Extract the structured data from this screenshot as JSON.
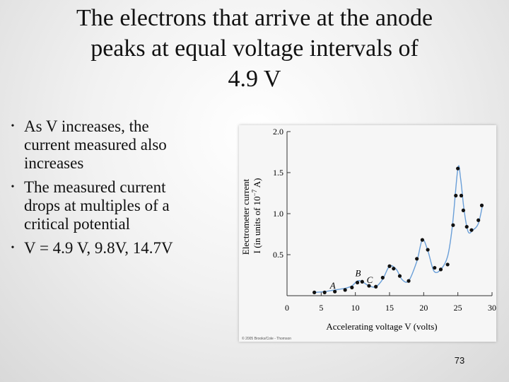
{
  "slide": {
    "title_lines": [
      "The electrons that arrive at the anode",
      "peaks at equal voltage intervals of",
      "4.9 V"
    ],
    "bullets": [
      {
        "lines": [
          "As V increases, the",
          "current measured also",
          "increases"
        ]
      },
      {
        "lines": [
          "The measured current",
          "drops at multiples of a",
          "critical potential"
        ]
      },
      {
        "lines": [
          "V = 4.9 V, 9.8V, 14.7V"
        ]
      }
    ],
    "bullet_glyph": "•",
    "page_number": "73"
  },
  "chart_data": {
    "type": "line",
    "xlabel": "Accelerating voltage V (volts)",
    "ylabel_line1": "Electrometer current",
    "ylabel_line2": "I (in units of 10",
    "ylabel_exp": "−7",
    "ylabel_end": " A)",
    "xlim": [
      0,
      30
    ],
    "ylim": [
      0,
      2.0
    ],
    "x_ticks": [
      0,
      5,
      10,
      15,
      20,
      25,
      30
    ],
    "y_ticks": [
      0.5,
      1.0,
      1.5,
      2.0
    ],
    "x_tick_labels": [
      "0",
      "5",
      "10",
      "15",
      "20",
      "25",
      "30"
    ],
    "y_tick_labels": [
      "0.5",
      "1.0",
      "1.5",
      "2.0"
    ],
    "curve_x": [
      4,
      5.5,
      7,
      8.5,
      9.5,
      10.3,
      11,
      12,
      13,
      14,
      15,
      16,
      16.8,
      17.8,
      19,
      19.8,
      20.6,
      21.5,
      22.5,
      23.5,
      24.2,
      25,
      25.4,
      25.9,
      26.5,
      27.2,
      28,
      28.6
    ],
    "curve_y": [
      0.04,
      0.05,
      0.07,
      0.09,
      0.12,
      0.18,
      0.17,
      0.12,
      0.11,
      0.2,
      0.36,
      0.32,
      0.2,
      0.18,
      0.42,
      0.68,
      0.55,
      0.3,
      0.32,
      0.48,
      0.85,
      1.55,
      1.43,
      1.05,
      0.78,
      0.8,
      0.88,
      1.1
    ],
    "points_x": [
      4,
      5.5,
      7,
      8.5,
      9.5,
      10.3,
      11,
      12,
      13,
      14,
      15,
      15.6,
      16.5,
      17.8,
      19,
      19.8,
      20.6,
      21.6,
      22.5,
      23.5,
      24.3,
      24.7,
      25,
      25.5,
      25.8,
      26.3,
      27,
      28,
      28.5
    ],
    "points_y": [
      0.04,
      0.04,
      0.05,
      0.07,
      0.1,
      0.16,
      0.17,
      0.12,
      0.11,
      0.22,
      0.36,
      0.33,
      0.24,
      0.18,
      0.45,
      0.68,
      0.56,
      0.34,
      0.32,
      0.38,
      0.86,
      1.22,
      1.55,
      1.22,
      1.04,
      0.84,
      0.8,
      0.92,
      1.1
    ],
    "annotations": [
      {
        "text": "A",
        "x": 6.7,
        "y": 0.07
      },
      {
        "text": "B",
        "x": 10.4,
        "y": 0.22
      },
      {
        "text": "C",
        "x": 12.1,
        "y": 0.14
      }
    ],
    "copyright": "© 2005 Brooks/Cole - Thomson",
    "grid": false,
    "curve_color": "#6a9fd8",
    "point_color": "#111111"
  }
}
